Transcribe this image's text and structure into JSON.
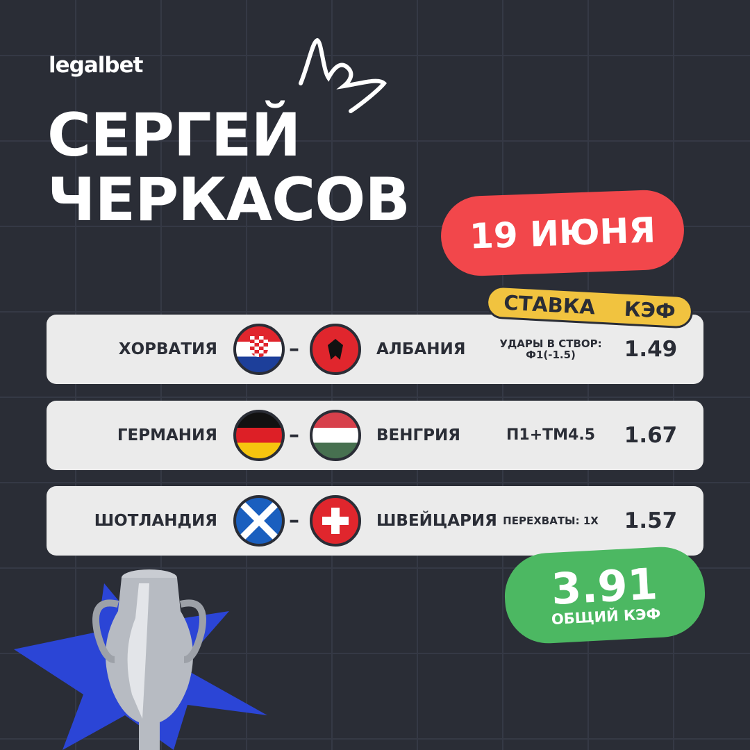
{
  "brand": "legalbet",
  "author": {
    "first": "СЕРГЕЙ",
    "last": "ЧЕРКАСОВ"
  },
  "date": "19 ИЮНЯ",
  "header": {
    "bet": "СТАВКА",
    "odds": "КЭФ"
  },
  "matches": [
    {
      "home": "ХОРВАТИЯ",
      "away": "АЛБАНИЯ",
      "home_flag": "croatia-flag",
      "away_flag": "albania-flag",
      "separator": "–",
      "bet": "УДАРЫ В СТВОР: Ф1(-1.5)",
      "odds": "1.49"
    },
    {
      "home": "ГЕРМАНИЯ",
      "away": "ВЕНГРИЯ",
      "home_flag": "germany-flag",
      "away_flag": "hungary-flag",
      "separator": "–",
      "bet": "П1+ТМ4.5",
      "odds": "1.67"
    },
    {
      "home": "ШОТЛАНДИЯ",
      "away": "ШВЕЙЦАРИЯ",
      "home_flag": "scotland-flag",
      "away_flag": "switzerland-flag",
      "separator": "–",
      "bet": "ПЕРЕХВАТЫ: 1Х",
      "odds": "1.57"
    }
  ],
  "total": {
    "value": "3.91",
    "label": "ОБЩИЙ КЭФ"
  },
  "colors": {
    "background": "#2a2d36",
    "red": "#f2474b",
    "yellow": "#f1c33f",
    "green": "#4cb862",
    "row": "#ebebeb",
    "star": "#2b45d6"
  }
}
